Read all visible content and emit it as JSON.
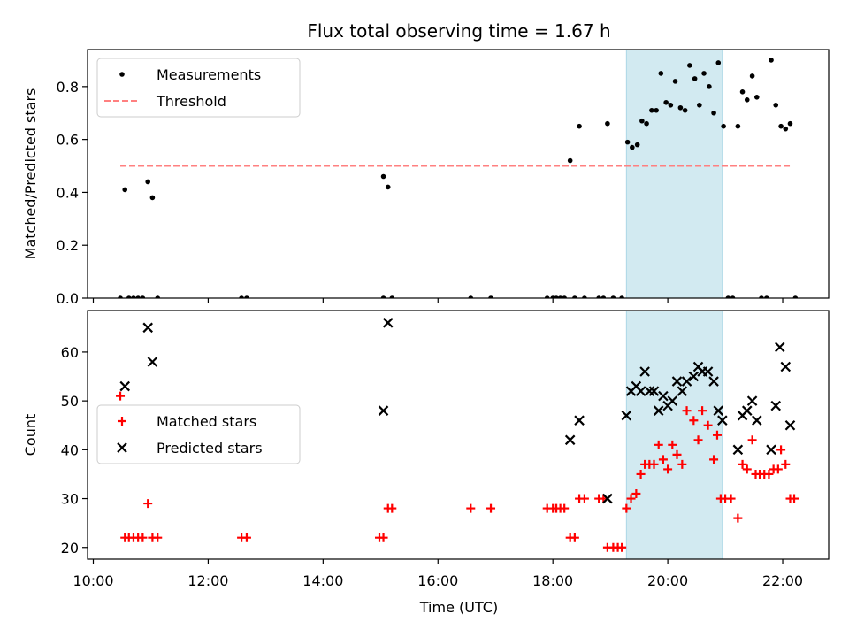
{
  "chart_data": {
    "title": "Flux total observing time = 1.67 h",
    "xlabel": "Time (UTC)",
    "x_unit": "hours UTC",
    "xlim": [
      9.9,
      22.8
    ],
    "xticks": [
      10,
      12,
      14,
      16,
      18,
      20,
      22
    ],
    "xtick_labels": [
      "10:00",
      "12:00",
      "14:00",
      "16:00",
      "18:00",
      "20:00",
      "22:00"
    ],
    "shaded_interval": [
      19.28,
      20.95
    ],
    "shade_color": "#add8e6",
    "panels": [
      {
        "type": "scatter",
        "ylabel": "Matched/Predicted stars",
        "ylim": [
          0,
          0.94
        ],
        "yticks": [
          0.0,
          0.2,
          0.4,
          0.6,
          0.8
        ],
        "ytick_labels": [
          "0.0",
          "0.2",
          "0.4",
          "0.6",
          "0.8"
        ],
        "legend_loc": "upper-left",
        "series": [
          {
            "name": "Measurements",
            "marker": "dot",
            "color": "#000000",
            "points": [
              [
                10.47,
                0
              ],
              [
                10.55,
                0.41
              ],
              [
                10.62,
                0
              ],
              [
                10.7,
                0
              ],
              [
                10.78,
                0
              ],
              [
                10.86,
                0
              ],
              [
                10.95,
                0.44
              ],
              [
                11.03,
                0.38
              ],
              [
                11.12,
                0
              ],
              [
                12.58,
                0
              ],
              [
                12.67,
                0
              ],
              [
                15.05,
                0.46
              ],
              [
                15.13,
                0.42
              ],
              [
                15.05,
                0
              ],
              [
                15.2,
                0
              ],
              [
                16.57,
                0
              ],
              [
                16.92,
                0
              ],
              [
                17.9,
                0
              ],
              [
                18.0,
                0
              ],
              [
                18.06,
                0
              ],
              [
                18.13,
                0
              ],
              [
                18.2,
                0
              ],
              [
                18.3,
                0.52
              ],
              [
                18.38,
                0
              ],
              [
                18.46,
                0.65
              ],
              [
                18.55,
                0
              ],
              [
                18.8,
                0
              ],
              [
                18.88,
                0
              ],
              [
                18.95,
                0.66
              ],
              [
                19.05,
                0
              ],
              [
                19.2,
                0
              ],
              [
                19.3,
                0.59
              ],
              [
                19.38,
                0.57
              ],
              [
                19.47,
                0.58
              ],
              [
                19.55,
                0.67
              ],
              [
                19.63,
                0.66
              ],
              [
                19.72,
                0.71
              ],
              [
                19.8,
                0.71
              ],
              [
                19.88,
                0.85
              ],
              [
                19.97,
                0.74
              ],
              [
                20.05,
                0.73
              ],
              [
                20.13,
                0.82
              ],
              [
                20.22,
                0.72
              ],
              [
                20.3,
                0.71
              ],
              [
                20.38,
                0.88
              ],
              [
                20.47,
                0.83
              ],
              [
                20.55,
                0.73
              ],
              [
                20.63,
                0.85
              ],
              [
                20.72,
                0.8
              ],
              [
                20.8,
                0.7
              ],
              [
                20.88,
                0.89
              ],
              [
                20.97,
                0.65
              ],
              [
                21.05,
                0
              ],
              [
                21.13,
                0
              ],
              [
                21.22,
                0.65
              ],
              [
                21.3,
                0.78
              ],
              [
                21.38,
                0.75
              ],
              [
                21.47,
                0.84
              ],
              [
                21.55,
                0.76
              ],
              [
                21.63,
                0
              ],
              [
                21.72,
                0
              ],
              [
                21.8,
                0.9
              ],
              [
                21.88,
                0.73
              ],
              [
                21.97,
                0.65
              ],
              [
                22.05,
                0.64
              ],
              [
                22.13,
                0.66
              ],
              [
                22.22,
                0
              ]
            ]
          },
          {
            "name": "Threshold",
            "marker": "dashed-line",
            "color": "#ff8080",
            "points": [
              [
                10.47,
                0.5
              ],
              [
                22.13,
                0.5
              ]
            ]
          }
        ]
      },
      {
        "type": "scatter",
        "ylabel": "Count",
        "ylim": [
          17.6,
          68.5
        ],
        "yticks": [
          20,
          30,
          40,
          50,
          60
        ],
        "ytick_labels": [
          "20",
          "30",
          "40",
          "50",
          "60"
        ],
        "legend_loc": "center-left",
        "series": [
          {
            "name": "Matched stars",
            "marker": "plus",
            "color": "#ff0000",
            "points": [
              [
                10.47,
                51
              ],
              [
                10.55,
                22
              ],
              [
                10.62,
                22
              ],
              [
                10.7,
                22
              ],
              [
                10.78,
                22
              ],
              [
                10.86,
                22
              ],
              [
                10.95,
                29
              ],
              [
                11.03,
                22
              ],
              [
                11.12,
                22
              ],
              [
                12.58,
                22
              ],
              [
                12.67,
                22
              ],
              [
                14.98,
                22
              ],
              [
                15.05,
                22
              ],
              [
                15.13,
                28
              ],
              [
                15.2,
                28
              ],
              [
                16.57,
                28
              ],
              [
                16.92,
                28
              ],
              [
                17.9,
                28
              ],
              [
                18.0,
                28
              ],
              [
                18.06,
                28
              ],
              [
                18.13,
                28
              ],
              [
                18.2,
                28
              ],
              [
                18.3,
                22
              ],
              [
                18.38,
                22
              ],
              [
                18.46,
                30
              ],
              [
                18.55,
                30
              ],
              [
                18.8,
                30
              ],
              [
                18.88,
                30
              ],
              [
                18.95,
                20
              ],
              [
                19.05,
                20
              ],
              [
                19.13,
                20
              ],
              [
                19.2,
                20
              ],
              [
                19.28,
                28
              ],
              [
                19.36,
                30
              ],
              [
                19.45,
                31
              ],
              [
                19.53,
                35
              ],
              [
                19.6,
                37
              ],
              [
                19.68,
                37
              ],
              [
                19.76,
                37
              ],
              [
                19.84,
                41
              ],
              [
                19.92,
                38
              ],
              [
                20.0,
                36
              ],
              [
                20.08,
                41
              ],
              [
                20.16,
                39
              ],
              [
                20.25,
                37
              ],
              [
                20.33,
                48
              ],
              [
                20.45,
                46
              ],
              [
                20.53,
                42
              ],
              [
                20.6,
                48
              ],
              [
                20.7,
                45
              ],
              [
                20.8,
                38
              ],
              [
                20.86,
                43
              ],
              [
                20.92,
                30
              ],
              [
                21.0,
                30
              ],
              [
                21.1,
                30
              ],
              [
                21.22,
                26
              ],
              [
                21.3,
                37
              ],
              [
                21.38,
                36
              ],
              [
                21.47,
                42
              ],
              [
                21.53,
                35
              ],
              [
                21.6,
                35
              ],
              [
                21.68,
                35
              ],
              [
                21.76,
                35
              ],
              [
                21.84,
                36
              ],
              [
                21.92,
                36
              ],
              [
                21.97,
                40
              ],
              [
                22.05,
                37
              ],
              [
                22.13,
                30
              ],
              [
                22.2,
                30
              ]
            ]
          },
          {
            "name": "Predicted stars",
            "marker": "x",
            "color": "#000000",
            "points": [
              [
                10.55,
                53
              ],
              [
                10.95,
                65
              ],
              [
                11.03,
                58
              ],
              [
                15.05,
                48
              ],
              [
                15.13,
                66
              ],
              [
                18.3,
                42
              ],
              [
                18.46,
                46
              ],
              [
                18.95,
                30
              ],
              [
                19.28,
                47
              ],
              [
                19.36,
                52
              ],
              [
                19.45,
                53
              ],
              [
                19.53,
                52
              ],
              [
                19.6,
                56
              ],
              [
                19.68,
                52
              ],
              [
                19.76,
                52
              ],
              [
                19.84,
                48
              ],
              [
                19.92,
                51
              ],
              [
                20.0,
                49
              ],
              [
                20.08,
                50
              ],
              [
                20.16,
                54
              ],
              [
                20.25,
                52
              ],
              [
                20.33,
                54
              ],
              [
                20.45,
                55
              ],
              [
                20.53,
                57
              ],
              [
                20.6,
                56
              ],
              [
                20.7,
                56
              ],
              [
                20.8,
                54
              ],
              [
                20.88,
                48
              ],
              [
                20.95,
                46
              ],
              [
                21.22,
                40
              ],
              [
                21.3,
                47
              ],
              [
                21.38,
                48
              ],
              [
                21.47,
                50
              ],
              [
                21.55,
                46
              ],
              [
                21.8,
                40
              ],
              [
                21.88,
                49
              ],
              [
                21.95,
                61
              ],
              [
                22.05,
                57
              ],
              [
                22.13,
                45
              ]
            ]
          }
        ]
      }
    ]
  }
}
